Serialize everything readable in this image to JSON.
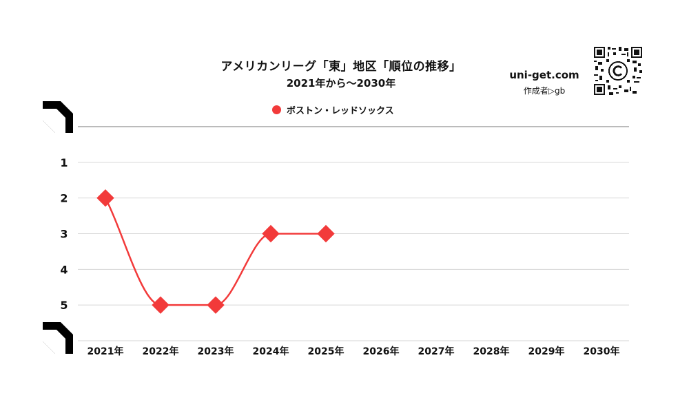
{
  "header": {
    "title": "アメリカンリーグ「東」地区「順位の推移」",
    "subtitle": "2021年から〜2030年",
    "site": "uni-get.com",
    "author": "作成者▷gb"
  },
  "colors": {
    "series": "#f23a3a",
    "grid": "#d6d6d6",
    "axis": "#777777"
  },
  "chart_data": {
    "type": "line",
    "title": "アメリカンリーグ「東」地区「順位の推移」",
    "subtitle": "2021年から〜2030年",
    "categories": [
      "2021年",
      "2022年",
      "2023年",
      "2024年",
      "2025年",
      "2026年",
      "2027年",
      "2028年",
      "2029年",
      "2030年"
    ],
    "y_ticks": [
      "1",
      "2",
      "3",
      "4",
      "5"
    ],
    "ylim": [
      0,
      6
    ],
    "y_inverted": true,
    "grid": true,
    "legend": "top-center",
    "marker": "diamond",
    "smooth": true,
    "series": [
      {
        "name": "ボストン・レッドソックス",
        "values": [
          2,
          5,
          5,
          3,
          3,
          null,
          null,
          null,
          null,
          null
        ]
      }
    ]
  }
}
